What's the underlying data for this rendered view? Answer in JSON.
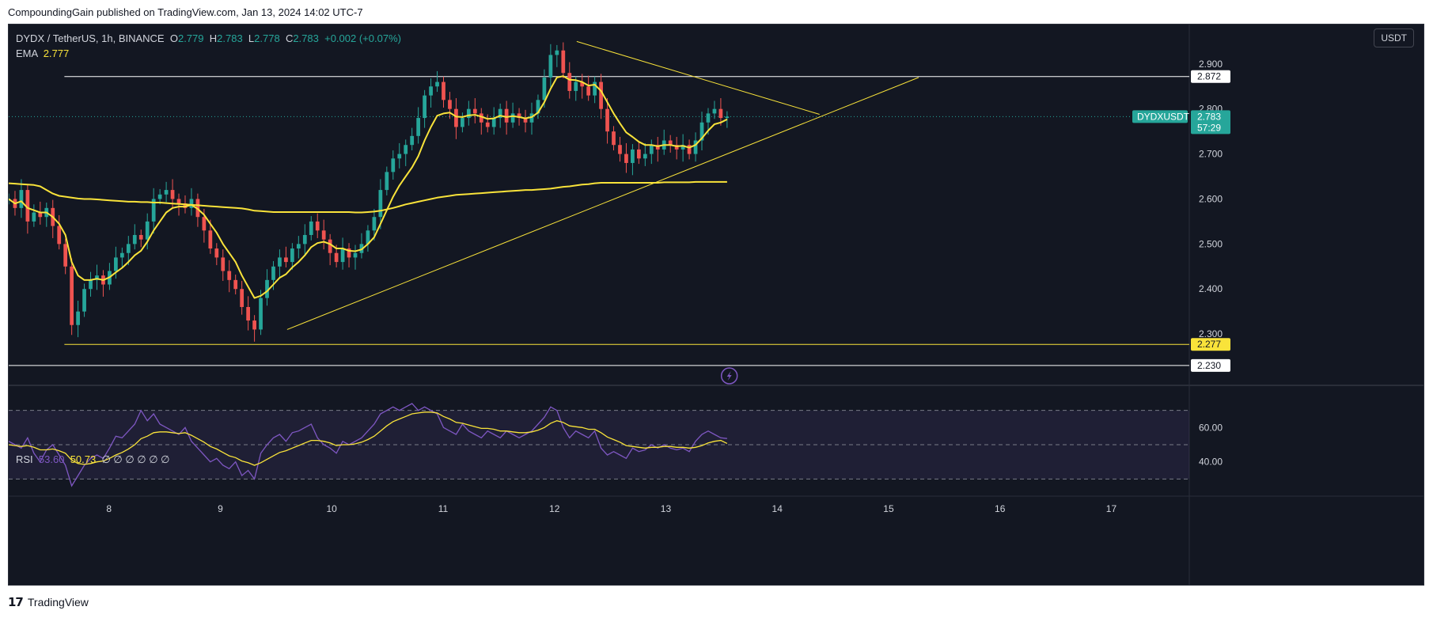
{
  "header": {
    "published": "CompoundingGain published on TradingView.com, Jan 13, 2024 14:02 UTC-7"
  },
  "legend": {
    "symbol": "DYDX / TetherUS, 1h, BINANCE",
    "o_label": "O",
    "o": "2.779",
    "h_label": "H",
    "h": "2.783",
    "l_label": "L",
    "l": "2.778",
    "c_label": "C",
    "c": "2.783",
    "change": "+0.002 (+0.07%)",
    "ema_label": "EMA",
    "ema": "2.777"
  },
  "unit_button": "USDT",
  "rsi_legend": {
    "label": "RSI",
    "v1": "53.60",
    "v2": "50.73",
    "rest": "∅ ∅ ∅ ∅ ∅ ∅"
  },
  "footer": {
    "logo": "𝟭𝟳",
    "brand": "TradingView"
  },
  "colors": {
    "bg": "#131722",
    "up": "#26a69a",
    "down": "#ef5350",
    "ema": "#f9e33a",
    "rsi": "#7e57c2",
    "grid_text": "#d1d4dc"
  },
  "chart_data": {
    "type": "candlestick",
    "symbol_tag": "DYDXUSDT",
    "last_price": "2.783",
    "countdown": "57:29",
    "y_ticks": [
      2.3,
      2.4,
      2.5,
      2.6,
      2.7,
      2.8,
      2.9
    ],
    "y_tick_labels": [
      "2.300",
      "2.400",
      "2.500",
      "2.600",
      "2.700",
      "2.800",
      "2.900"
    ],
    "ylim": [
      2.2,
      2.97
    ],
    "x_ticks": [
      8,
      9,
      10,
      11,
      12,
      13,
      14,
      15,
      16,
      17
    ],
    "xlim": [
      7.1,
      17.7
    ],
    "levels": [
      {
        "price": 2.872,
        "label": "2.872",
        "color": "#ffffff",
        "from": 7.6,
        "to": 17.7
      },
      {
        "price": 2.277,
        "label": "2.277",
        "color": "#f9e33a",
        "from": 7.6,
        "to": 17.7
      },
      {
        "price": 2.23,
        "label": "2.230",
        "color": "#ffffff",
        "from": 7.1,
        "to": 17.7
      }
    ],
    "trendlines": [
      {
        "x1": 12.2,
        "y1": 2.95,
        "x2": 14.38,
        "y2": 2.788
      },
      {
        "x1": 9.6,
        "y1": 2.31,
        "x2": 15.27,
        "y2": 2.87
      }
    ],
    "closes": [
      2.6,
      2.58,
      2.62,
      2.55,
      2.57,
      2.56,
      2.58,
      2.54,
      2.5,
      2.45,
      2.32,
      2.35,
      2.4,
      2.42,
      2.43,
      2.41,
      2.44,
      2.47,
      2.48,
      2.5,
      2.52,
      2.51,
      2.55,
      2.6,
      2.61,
      2.62,
      2.6,
      2.59,
      2.58,
      2.6,
      2.56,
      2.53,
      2.49,
      2.47,
      2.44,
      2.42,
      2.4,
      2.36,
      2.33,
      2.31,
      2.38,
      2.42,
      2.45,
      2.47,
      2.46,
      2.49,
      2.5,
      2.52,
      2.55,
      2.53,
      2.51,
      2.48,
      2.46,
      2.49,
      2.47,
      2.48,
      2.5,
      2.53,
      2.56,
      2.62,
      2.66,
      2.69,
      2.7,
      2.72,
      2.74,
      2.78,
      2.83,
      2.85,
      2.86,
      2.82,
      2.8,
      2.76,
      2.78,
      2.8,
      2.79,
      2.77,
      2.76,
      2.78,
      2.8,
      2.77,
      2.79,
      2.78,
      2.77,
      2.79,
      2.82,
      2.87,
      2.92,
      2.93,
      2.88,
      2.84,
      2.86,
      2.85,
      2.83,
      2.86,
      2.8,
      2.75,
      2.72,
      2.7,
      2.68,
      2.71,
      2.69,
      2.7,
      2.72,
      2.71,
      2.73,
      2.72,
      2.71,
      2.72,
      2.7,
      2.73,
      2.77,
      2.79,
      2.8,
      2.78,
      2.783
    ],
    "ema_fast": [
      2.6,
      2.59,
      2.595,
      2.58,
      2.575,
      2.57,
      2.57,
      2.56,
      2.545,
      2.52,
      2.46,
      2.43,
      2.42,
      2.42,
      2.423,
      2.42,
      2.426,
      2.437,
      2.447,
      2.46,
      2.475,
      2.485,
      2.505,
      2.53,
      2.55,
      2.57,
      2.58,
      2.583,
      2.583,
      2.587,
      2.578,
      2.565,
      2.545,
      2.525,
      2.5,
      2.48,
      2.46,
      2.43,
      2.405,
      2.38,
      2.385,
      2.395,
      2.41,
      2.425,
      2.433,
      2.448,
      2.46,
      2.475,
      2.493,
      2.502,
      2.505,
      2.5,
      2.49,
      2.49,
      2.485,
      2.484,
      2.488,
      2.5,
      2.515,
      2.545,
      2.575,
      2.605,
      2.63,
      2.65,
      2.67,
      2.695,
      2.73,
      2.76,
      2.785,
      2.79,
      2.792,
      2.783,
      2.782,
      2.786,
      2.787,
      2.783,
      2.778,
      2.779,
      2.785,
      2.782,
      2.784,
      2.782,
      2.779,
      2.782,
      2.792,
      2.815,
      2.845,
      2.87,
      2.873,
      2.865,
      2.864,
      2.86,
      2.852,
      2.854,
      2.84,
      2.815,
      2.79,
      2.768,
      2.748,
      2.738,
      2.727,
      2.72,
      2.72,
      2.717,
      2.72,
      2.72,
      2.717,
      2.718,
      2.714,
      2.72,
      2.735,
      2.752,
      2.766,
      2.77,
      2.777
    ],
    "ema_slow": [
      2.635,
      2.634,
      2.633,
      2.632,
      2.631,
      2.628,
      2.62,
      2.612,
      2.607,
      2.605,
      2.603,
      2.601,
      2.6,
      2.6,
      2.599,
      2.598,
      2.597,
      2.596,
      2.595,
      2.594,
      2.594,
      2.593,
      2.593,
      2.592,
      2.592,
      2.591,
      2.59,
      2.589,
      2.588,
      2.587,
      2.586,
      2.585,
      2.584,
      2.583,
      2.582,
      2.581,
      2.58,
      2.579,
      2.577,
      2.574,
      2.573,
      2.572,
      2.571,
      2.571,
      2.571,
      2.571,
      2.571,
      2.571,
      2.571,
      2.571,
      2.571,
      2.571,
      2.571,
      2.571,
      2.571,
      2.57,
      2.57,
      2.571,
      2.572,
      2.574,
      2.577,
      2.58,
      2.584,
      2.588,
      2.591,
      2.594,
      2.597,
      2.6,
      2.603,
      2.605,
      2.607,
      2.609,
      2.61,
      2.611,
      2.612,
      2.613,
      2.614,
      2.615,
      2.616,
      2.617,
      2.618,
      2.619,
      2.62,
      2.62,
      2.621,
      2.622,
      2.623,
      2.625,
      2.627,
      2.628,
      2.63,
      2.632,
      2.633,
      2.635,
      2.636,
      2.636,
      2.636,
      2.636,
      2.636,
      2.636,
      2.636,
      2.636,
      2.636,
      2.636,
      2.637,
      2.637,
      2.637,
      2.637,
      2.637,
      2.638,
      2.638,
      2.638,
      2.638,
      2.638,
      2.638
    ],
    "rsi": {
      "levels": [
        70,
        50,
        30
      ],
      "level_labels": [
        "60.00",
        "40.00"
      ],
      "level_label_values": [
        60,
        40
      ],
      "ylim": [
        20,
        80
      ],
      "values": [
        52,
        50,
        48,
        54,
        45,
        40,
        47,
        50,
        44,
        38,
        26,
        32,
        38,
        42,
        44,
        42,
        48,
        55,
        54,
        58,
        62,
        70,
        64,
        68,
        62,
        60,
        58,
        56,
        60,
        52,
        48,
        44,
        40,
        42,
        38,
        36,
        40,
        32,
        35,
        30,
        45,
        50,
        54,
        56,
        52,
        57,
        58,
        60,
        62,
        54,
        50,
        48,
        45,
        52,
        50,
        52,
        54,
        58,
        62,
        68,
        70,
        72,
        70,
        72,
        74,
        70,
        72,
        70,
        68,
        60,
        58,
        56,
        62,
        58,
        56,
        54,
        58,
        56,
        54,
        58,
        56,
        54,
        56,
        58,
        62,
        66,
        72,
        70,
        60,
        54,
        58,
        56,
        54,
        58,
        48,
        44,
        46,
        44,
        42,
        48,
        46,
        47,
        50,
        48,
        50,
        48,
        47,
        48,
        46,
        52,
        56,
        58,
        56,
        54,
        53.6
      ],
      "signal": [
        50,
        49.5,
        49,
        49.5,
        48.5,
        47,
        47,
        47.5,
        46.5,
        45,
        41,
        39,
        38.5,
        39,
        40,
        40.5,
        42,
        44,
        45.5,
        47.5,
        50,
        53.5,
        55,
        57,
        57.5,
        57.5,
        57,
        56.5,
        57,
        55.5,
        53.5,
        51.5,
        49,
        47.5,
        45.5,
        43.5,
        42.5,
        40.5,
        39.5,
        38,
        39.5,
        41.5,
        43.5,
        45.5,
        46.5,
        48,
        49.5,
        51,
        52.5,
        52.5,
        52,
        51,
        49.5,
        50,
        50,
        50.5,
        51.5,
        53,
        55,
        58,
        61,
        63.5,
        65,
        66.5,
        68,
        68.5,
        69,
        69,
        68.5,
        66.5,
        65,
        63,
        62.5,
        61.5,
        60.5,
        59.5,
        59.5,
        59,
        58,
        58,
        57.5,
        57,
        57,
        57.5,
        58.5,
        60,
        62.5,
        64,
        63,
        61,
        60.5,
        60,
        59,
        59,
        57,
        54.5,
        53,
        51.5,
        49.5,
        49,
        48.5,
        48,
        48.5,
        48.5,
        49,
        49,
        48.5,
        48.5,
        48,
        48.5,
        49.5,
        51,
        52,
        52.5,
        50.73
      ]
    }
  }
}
